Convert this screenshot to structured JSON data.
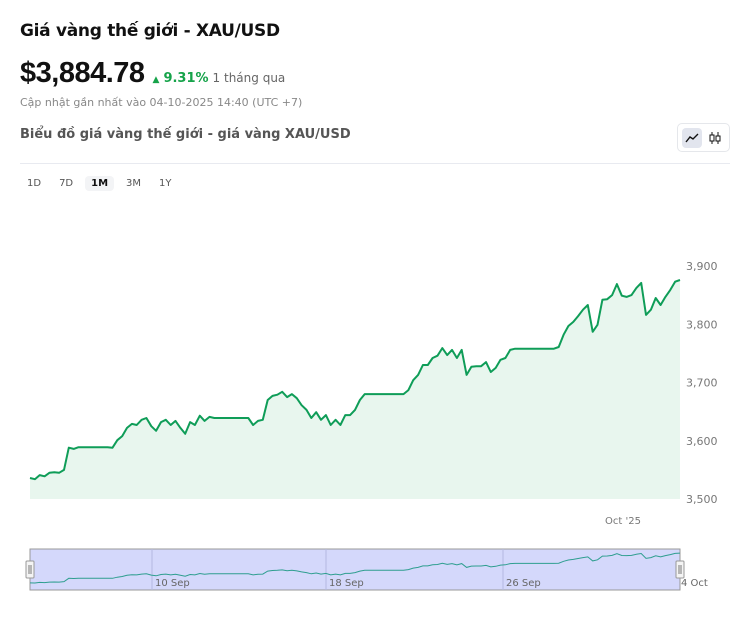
{
  "header": {
    "title": "Giá vàng thế giới - XAU/USD",
    "price": "$3,884.78",
    "change_pct": "9.31%",
    "change_period": "1 tháng qua",
    "updated": "Cập nhật gần nhất vào 04-10-2025 14:40 (UTC +7)",
    "chart_title": "Biểu đồ giá vàng thế giới - giá vàng XAU/USD"
  },
  "chart_types": [
    {
      "icon": "line-chart-icon",
      "active": true
    },
    {
      "icon": "candlestick-icon",
      "active": false
    }
  ],
  "ranges": [
    {
      "label": "1D"
    },
    {
      "label": "7D"
    },
    {
      "label": "1M",
      "active": true
    },
    {
      "label": "3M"
    },
    {
      "label": "1Y"
    }
  ],
  "colors": {
    "line": "#0f9d58",
    "fill": "#e8f6ee",
    "up": "#16a34a",
    "navigator": "#d4d8fb"
  },
  "chart_data": {
    "type": "area",
    "x_start": "2025-09-04",
    "x_end": "2025-10-04",
    "x_tick_labels": [
      "Oct '25"
    ],
    "ylim": [
      3500,
      3900
    ],
    "y_ticks": [
      "3,500",
      "3,600",
      "3,700",
      "3,800",
      "3,900"
    ],
    "y_tick_values": [
      3500,
      3600,
      3700,
      3800,
      3900
    ],
    "navigator_labels": [
      "10 Sep",
      "18 Sep",
      "26 Sep",
      "4 Oct"
    ],
    "values": [
      3536,
      3534,
      3541,
      3539,
      3545,
      3546,
      3545,
      3550,
      3588,
      3586,
      3589,
      3589,
      3589,
      3589,
      3589,
      3589,
      3589,
      3588,
      3601,
      3608,
      3622,
      3629,
      3627,
      3636,
      3639,
      3625,
      3617,
      3632,
      3636,
      3627,
      3634,
      3622,
      3612,
      3632,
      3627,
      3643,
      3634,
      3641,
      3639,
      3639,
      3639,
      3639,
      3639,
      3639,
      3639,
      3639,
      3627,
      3634,
      3636,
      3670,
      3677,
      3679,
      3684,
      3675,
      3680,
      3673,
      3661,
      3653,
      3639,
      3649,
      3636,
      3644,
      3627,
      3636,
      3627,
      3644,
      3644,
      3653,
      3670,
      3680,
      3680,
      3680,
      3680,
      3680,
      3680,
      3680,
      3680,
      3680,
      3687,
      3704,
      3713,
      3730,
      3730,
      3742,
      3746,
      3759,
      3747,
      3756,
      3742,
      3756,
      3713,
      3727,
      3728,
      3728,
      3735,
      3718,
      3725,
      3739,
      3742,
      3756,
      3758,
      3758,
      3758,
      3758,
      3758,
      3758,
      3758,
      3758,
      3758,
      3761,
      3782,
      3797,
      3804,
      3814,
      3825,
      3833,
      3787,
      3799,
      3842,
      3843,
      3850,
      3869,
      3849,
      3847,
      3850,
      3862,
      3871,
      3816,
      3825,
      3845,
      3833,
      3847,
      3859,
      3873,
      3876
    ]
  }
}
